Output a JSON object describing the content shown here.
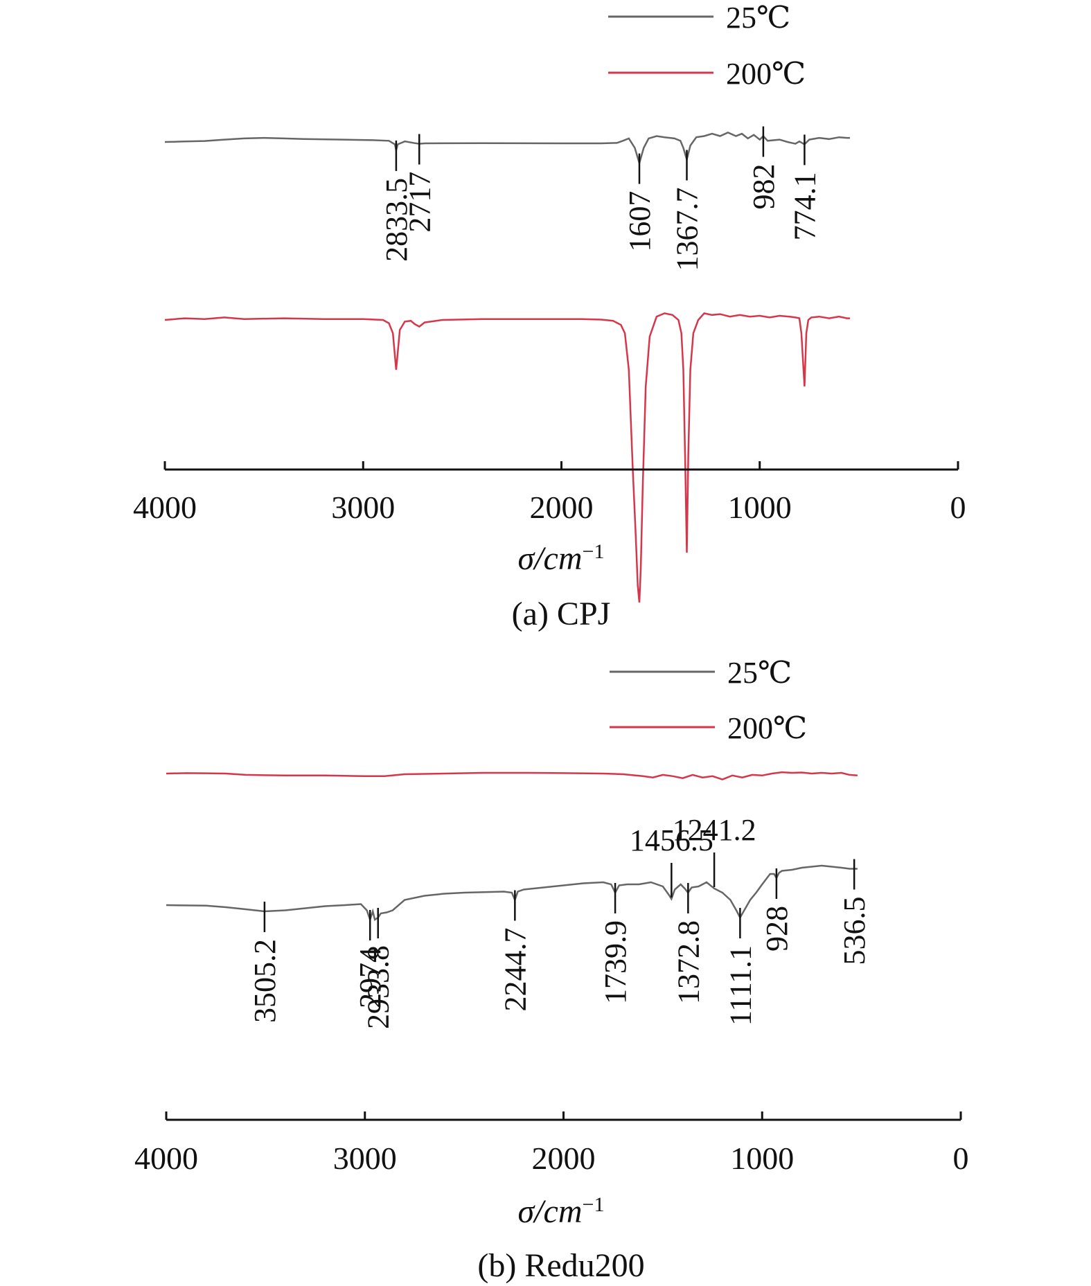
{
  "colors": {
    "series_25": "#666666",
    "series_200": "#d6364a",
    "axis": "#111111"
  },
  "chart_data": [
    {
      "type": "line",
      "caption": "(a) CPJ",
      "xlabel": "σ/cm",
      "xlabel_sup": "−1",
      "xlim": [
        4000,
        0
      ],
      "xticks": [
        "4000",
        "3000",
        "2000",
        "1000",
        "0"
      ],
      "legend_placement": "top-right",
      "legend": [
        "25℃",
        "200℃"
      ],
      "series": [
        {
          "name": "25℃",
          "color": "#666666",
          "x": [
            4000,
            3950,
            3900,
            3800,
            3700,
            3600,
            3500,
            3400,
            3300,
            3100,
            2950,
            2870,
            2840,
            2833.5,
            2825,
            2790,
            2740,
            2717,
            2690,
            2400,
            2000,
            1800,
            1720,
            1690,
            1660,
            1630,
            1607,
            1585,
            1560,
            1520,
            1480,
            1430,
            1400,
            1385,
            1367.7,
            1350,
            1320,
            1280,
            1240,
            1200,
            1160,
            1120,
            1090,
            1060,
            1030,
            1000,
            982,
            960,
            900,
            860,
            820,
            800,
            774.1,
            750,
            700,
            650,
            600,
            560,
            545
          ],
          "y": [
            0,
            0.002,
            0.004,
            0.008,
            0.02,
            0.03,
            0.035,
            0.03,
            0.025,
            0.02,
            0.015,
            0.01,
            -0.02,
            -0.07,
            -0.02,
            0.005,
            -0.01,
            -0.015,
            -0.012,
            -0.01,
            -0.012,
            -0.012,
            -0.008,
            0.01,
            0.03,
            -0.05,
            -0.18,
            -0.05,
            0.03,
            0.05,
            0.04,
            0.03,
            0.01,
            -0.05,
            -0.15,
            -0.03,
            0.04,
            0.05,
            0.07,
            0.05,
            0.08,
            0.05,
            0.07,
            0.03,
            0.06,
            0.02,
            0.05,
            0.01,
            0.02,
            0.0,
            -0.015,
            0.005,
            -0.02,
            0.02,
            0.035,
            0.025,
            0.04,
            0.035,
            0.035
          ]
        },
        {
          "name": "200℃",
          "color": "#d6364a",
          "x": [
            4000,
            3900,
            3800,
            3700,
            3600,
            3400,
            3200,
            3000,
            2900,
            2870,
            2850,
            2833.5,
            2815,
            2790,
            2760,
            2740,
            2717,
            2690,
            2600,
            2400,
            2100,
            1900,
            1800,
            1740,
            1700,
            1680,
            1660,
            1640,
            1625,
            1615,
            1607,
            1600,
            1590,
            1575,
            1555,
            1520,
            1480,
            1440,
            1410,
            1395,
            1385,
            1375,
            1367.7,
            1360,
            1350,
            1335,
            1310,
            1280,
            1240,
            1200,
            1150,
            1100,
            1050,
            1000,
            950,
            900,
            850,
            820,
            800,
            790,
            774.1,
            765,
            755,
            740,
            700,
            650,
            600,
            560,
            545
          ],
          "y": [
            0,
            0.01,
            0.005,
            0.015,
            0.005,
            0.01,
            0.005,
            0.005,
            0.0,
            -0.02,
            -0.08,
            -0.3,
            -0.06,
            -0.01,
            -0.005,
            -0.025,
            -0.04,
            -0.015,
            0.0,
            0.005,
            0.005,
            0.005,
            0.002,
            -0.005,
            -0.03,
            -0.08,
            -0.3,
            -0.9,
            -1.3,
            -1.6,
            -1.7,
            -1.5,
            -1.0,
            -0.4,
            -0.1,
            0.02,
            0.04,
            0.03,
            0.0,
            -0.08,
            -0.3,
            -0.9,
            -1.4,
            -0.8,
            -0.3,
            -0.08,
            0.0,
            0.04,
            0.03,
            0.035,
            0.02,
            0.03,
            0.02,
            0.025,
            0.015,
            0.025,
            0.02,
            0.015,
            0.01,
            -0.08,
            -0.4,
            -0.08,
            0.0,
            0.015,
            0.02,
            0.01,
            0.02,
            0.01,
            0.01
          ]
        }
      ],
      "annotations": [
        {
          "x": 2833.5,
          "label": "2833.5",
          "series": "25℃"
        },
        {
          "x": 2717,
          "label": "2717",
          "series": "25℃"
        },
        {
          "x": 1607,
          "label": "1607",
          "series": "25℃"
        },
        {
          "x": 1367.7,
          "label": "1367.7",
          "series": "25℃"
        },
        {
          "x": 982,
          "label": "982",
          "series": "25℃"
        },
        {
          "x": 774.1,
          "label": "774.1",
          "series": "25℃"
        }
      ]
    },
    {
      "type": "line",
      "caption": "(b) Redu200",
      "xlabel": "σ/cm",
      "xlabel_sup": "−1",
      "xlim": [
        4000,
        0
      ],
      "xticks": [
        "4000",
        "3000",
        "2000",
        "1000",
        "0"
      ],
      "legend_placement": "top-right",
      "legend": [
        "25℃",
        "200℃"
      ],
      "series": [
        {
          "name": "25℃",
          "color": "#666666",
          "x": [
            4000,
            3800,
            3700,
            3600,
            3505.2,
            3400,
            3300,
            3200,
            3100,
            3020,
            2990,
            2974,
            2960,
            2950,
            2933.8,
            2920,
            2890,
            2860,
            2800,
            2700,
            2600,
            2500,
            2400,
            2300,
            2260,
            2244.7,
            2230,
            2200,
            2100,
            2000,
            1900,
            1800,
            1760,
            1739.9,
            1720,
            1680,
            1620,
            1560,
            1500,
            1470,
            1456.5,
            1440,
            1410,
            1390,
            1372.8,
            1355,
            1320,
            1280,
            1241.2,
            1200,
            1160,
            1130,
            1111.1,
            1090,
            1060,
            1030,
            1000,
            960,
            940,
            928,
            915,
            900,
            850,
            800,
            750,
            700,
            650,
            600,
            560,
            536.5,
            520
          ],
          "y": [
            0,
            -0.005,
            -0.02,
            -0.04,
            -0.06,
            -0.05,
            -0.03,
            -0.01,
            0.0,
            0.01,
            -0.05,
            -0.14,
            -0.06,
            -0.14,
            -0.12,
            -0.08,
            -0.07,
            -0.05,
            0.05,
            0.09,
            0.11,
            0.12,
            0.125,
            0.13,
            0.12,
            0.05,
            0.13,
            0.15,
            0.17,
            0.19,
            0.21,
            0.22,
            0.2,
            0.12,
            0.19,
            0.2,
            0.2,
            0.22,
            0.18,
            0.1,
            0.06,
            0.15,
            0.2,
            0.16,
            0.12,
            0.17,
            0.18,
            0.22,
            0.16,
            0.12,
            0.05,
            -0.05,
            -0.12,
            -0.05,
            0.05,
            0.12,
            0.2,
            0.3,
            0.3,
            0.26,
            0.31,
            0.33,
            0.34,
            0.36,
            0.37,
            0.38,
            0.37,
            0.36,
            0.35,
            0.35,
            0.35
          ]
        },
        {
          "name": "200℃",
          "color": "#d6364a",
          "x": [
            4000,
            3900,
            3800,
            3700,
            3600,
            3400,
            3200,
            3000,
            2900,
            2800,
            2600,
            2400,
            2200,
            2000,
            1800,
            1700,
            1600,
            1550,
            1500,
            1450,
            1400,
            1350,
            1300,
            1250,
            1200,
            1150,
            1100,
            1050,
            1000,
            950,
            900,
            850,
            800,
            750,
            700,
            650,
            600,
            560,
            520
          ],
          "y": [
            0,
            0.003,
            0.002,
            0.0,
            -0.01,
            -0.015,
            -0.015,
            -0.02,
            -0.02,
            -0.005,
            0.0,
            0.005,
            0.005,
            0.003,
            0.0,
            -0.005,
            -0.02,
            -0.03,
            -0.01,
            -0.02,
            -0.035,
            -0.01,
            -0.03,
            -0.02,
            -0.045,
            -0.015,
            -0.03,
            -0.01,
            -0.015,
            0.0,
            0.01,
            0.005,
            0.008,
            0.0,
            0.005,
            0.0,
            0.005,
            -0.01,
            -0.015
          ]
        }
      ],
      "annotations": [
        {
          "x": 3505.2,
          "label": "3505.2",
          "series": "25℃"
        },
        {
          "x": 2974,
          "label": "2974",
          "series": "25℃"
        },
        {
          "x": 2933.8,
          "label": "2933.8",
          "series": "25℃"
        },
        {
          "x": 2244.7,
          "label": "2244.7",
          "series": "25℃"
        },
        {
          "x": 1739.9,
          "label": "1739.9",
          "series": "25℃"
        },
        {
          "x": 1456.5,
          "label": "1456.5",
          "series": "25℃",
          "placement": "above"
        },
        {
          "x": 1372.8,
          "label": "1372.8",
          "series": "25℃"
        },
        {
          "x": 1241.2,
          "label": "1241.2",
          "series": "25℃",
          "placement": "above"
        },
        {
          "x": 1111.1,
          "label": "1111.1",
          "series": "25℃"
        },
        {
          "x": 928,
          "label": "928",
          "series": "25℃"
        },
        {
          "x": 536.5,
          "label": "536.5",
          "series": "25℃"
        }
      ]
    }
  ]
}
